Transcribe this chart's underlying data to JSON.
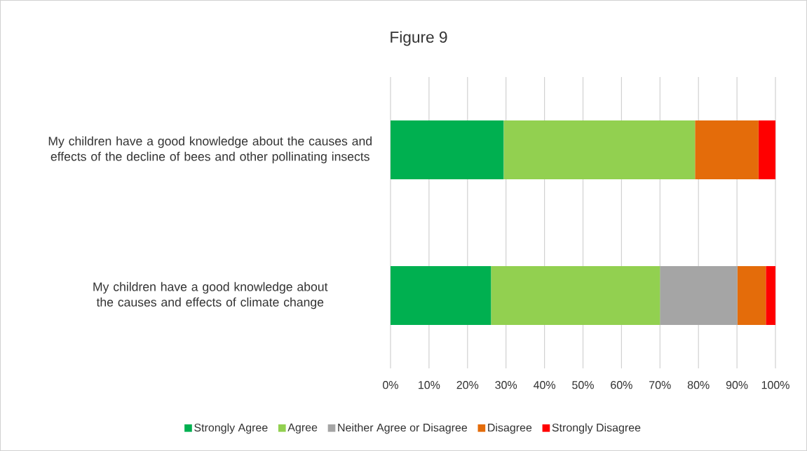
{
  "chart_data": {
    "type": "bar",
    "orientation": "horizontal",
    "stacked": true,
    "title": "Figure 9",
    "categories": [
      "My children have a good knowledge about the causes and effects of the decline of bees and other pollinating insects",
      "My children have a good knowledge about the causes and effects of climate change"
    ],
    "series": [
      {
        "name": "Strongly Agree",
        "color": "#00b050",
        "values": [
          29.4,
          26.1
        ]
      },
      {
        "name": "Agree",
        "color": "#92d050",
        "values": [
          49.7,
          43.9
        ]
      },
      {
        "name": "Neither Agree or Disagree",
        "color": "#a5a5a5",
        "values": [
          0,
          20.1
        ]
      },
      {
        "name": "Disagree",
        "color": "#e46c0a",
        "values": [
          16.5,
          7.4
        ]
      },
      {
        "name": "Strongly Disagree",
        "color": "#ff0000",
        "values": [
          4.4,
          2.5
        ]
      }
    ],
    "xlim": [
      0,
      100
    ],
    "xticks": [
      {
        "value": 0,
        "label": "0%"
      },
      {
        "value": 10,
        "label": "10%"
      },
      {
        "value": 20,
        "label": "20%"
      },
      {
        "value": 30,
        "label": "30%"
      },
      {
        "value": 40,
        "label": "40%"
      },
      {
        "value": 50,
        "label": "50%"
      },
      {
        "value": 60,
        "label": "60%"
      },
      {
        "value": 70,
        "label": "70%"
      },
      {
        "value": 80,
        "label": "80%"
      },
      {
        "value": 90,
        "label": "90%"
      },
      {
        "value": 100,
        "label": "100%"
      }
    ],
    "grid": "x",
    "legend": "bottom"
  }
}
